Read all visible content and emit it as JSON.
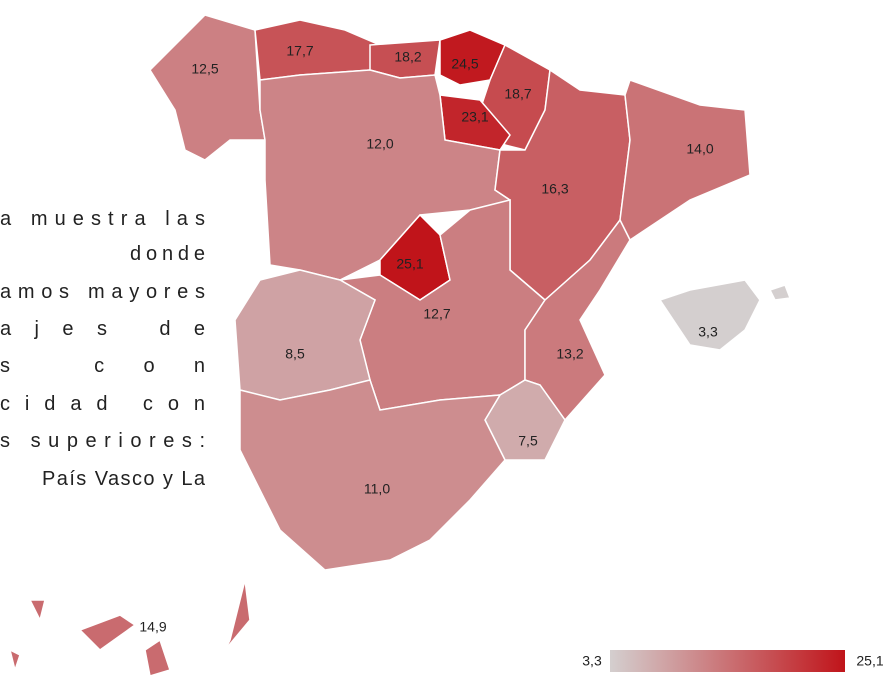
{
  "text_lines": [
    "a muestra las",
    "donde",
    "amos mayores",
    "ajes de",
    "s con",
    "cidad con",
    "s superiores:",
    "País Vasco y La"
  ],
  "map": {
    "regions": [
      {
        "value": 12.5,
        "label": "12,5"
      },
      {
        "value": 17.7,
        "label": "17,7"
      },
      {
        "value": 18.2,
        "label": "18,2"
      },
      {
        "value": 24.5,
        "label": "24,5"
      },
      {
        "value": 18.7,
        "label": "18,7"
      },
      {
        "value": 23.1,
        "label": "23,1"
      },
      {
        "value": 12.0,
        "label": "12,0"
      },
      {
        "value": 16.3,
        "label": "16,3"
      },
      {
        "value": 14.0,
        "label": "14,0"
      },
      {
        "value": 25.1,
        "label": "25,1"
      },
      {
        "value": 12.7,
        "label": "12,7"
      },
      {
        "value": 8.5,
        "label": "8,5"
      },
      {
        "value": 13.2,
        "label": "13,2"
      },
      {
        "value": 7.5,
        "label": "7,5"
      },
      {
        "value": 11.0,
        "label": "11,0"
      },
      {
        "value": 3.3,
        "label": "3,3"
      },
      {
        "value": 14.9,
        "label": "14,9"
      }
    ],
    "legend": {
      "min": {
        "value": 3.3,
        "label": "3,3"
      },
      "max": {
        "value": 25.1,
        "label": "25,1"
      },
      "min_color": "#d4cfcf",
      "max_color": "#c0141a"
    }
  }
}
